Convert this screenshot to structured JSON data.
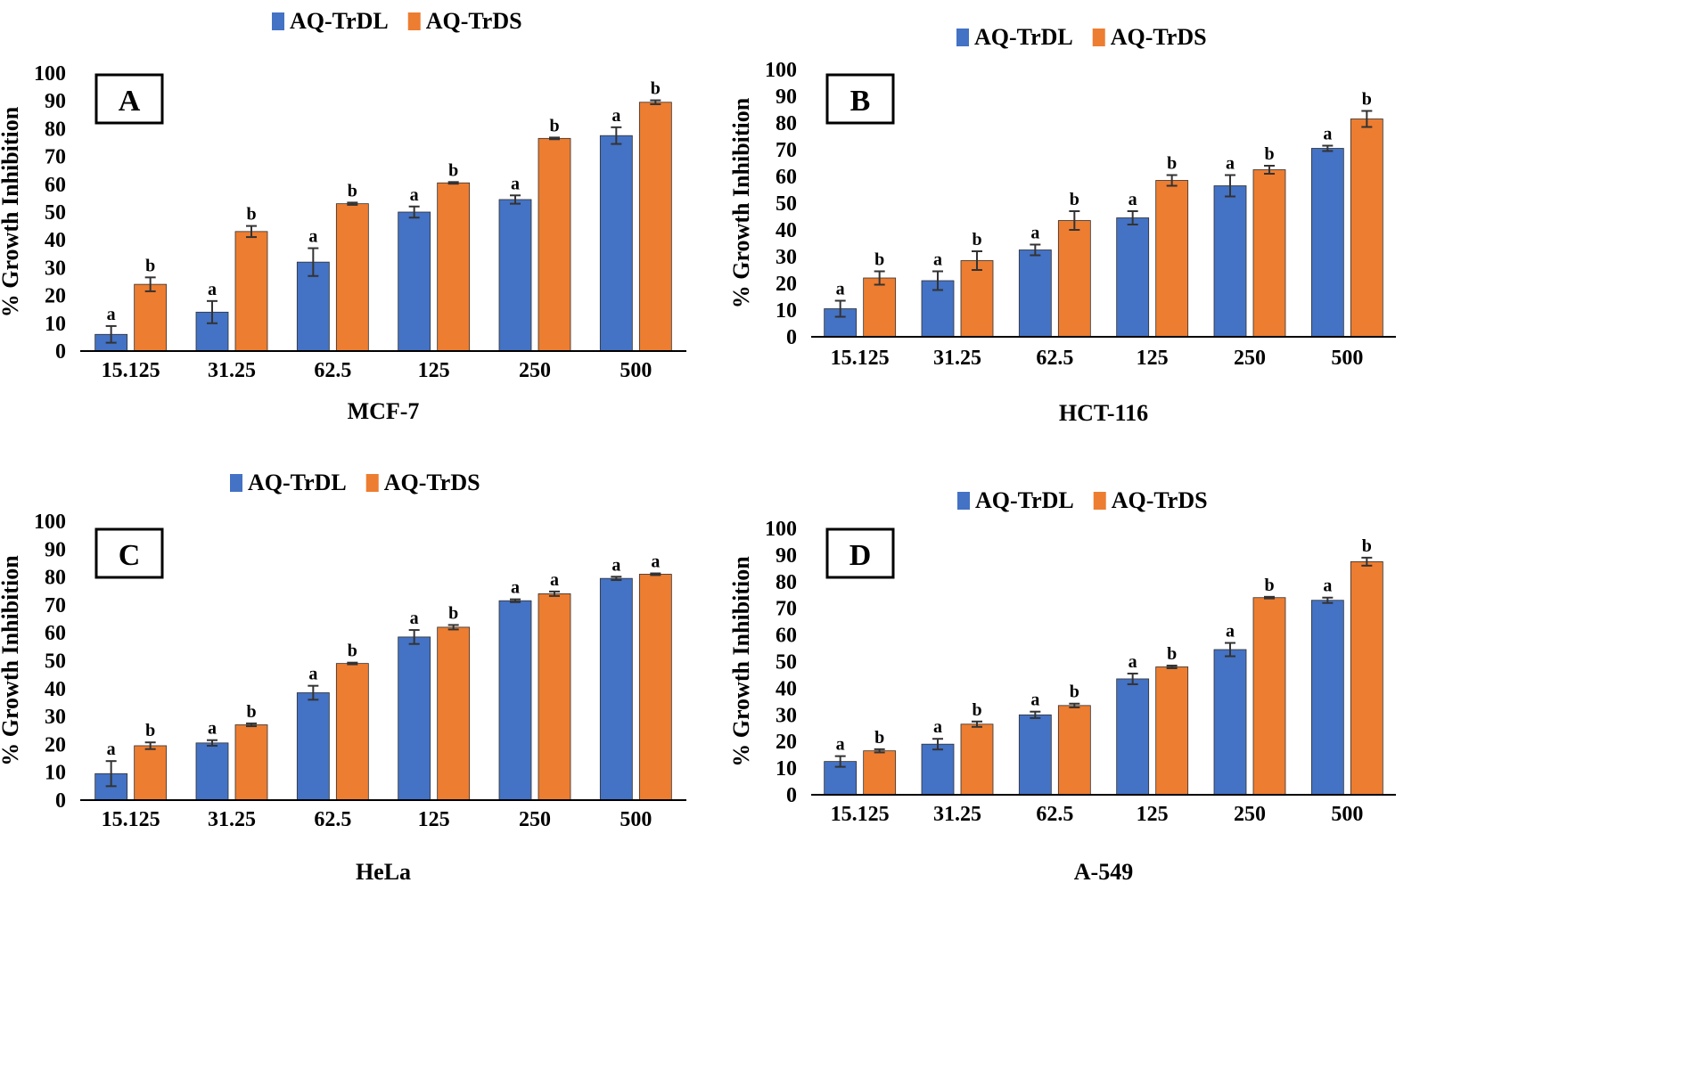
{
  "chart_data": [
    {
      "type": "bar",
      "panel_label": "A",
      "xlabel": "MCF-7",
      "ylabel": "% Growth Inhibition",
      "ylim": [
        0,
        100
      ],
      "yticks": [
        0,
        10,
        20,
        30,
        40,
        50,
        60,
        70,
        80,
        90,
        100
      ],
      "categories": [
        "15.125",
        "31.25",
        "62.5",
        "125",
        "250",
        "500"
      ],
      "legend": "top-center",
      "series": [
        {
          "name": "AQ-TrDL",
          "color": "#4472C4",
          "values": [
            6,
            14,
            32,
            50,
            54.5,
            77.5
          ],
          "errors": [
            3,
            4,
            5,
            2,
            1.5,
            3
          ],
          "letters": [
            "a",
            "a",
            "a",
            "a",
            "a",
            "a"
          ]
        },
        {
          "name": "AQ-TrDS",
          "color": "#ED7D31",
          "values": [
            24,
            43,
            53,
            60.5,
            76.5,
            89.5
          ],
          "errors": [
            2.5,
            2,
            0.4,
            0.3,
            0.3,
            0.7
          ],
          "letters": [
            "b",
            "b",
            "b",
            "b",
            "b",
            "b"
          ]
        }
      ]
    },
    {
      "type": "bar",
      "panel_label": "B",
      "xlabel": "HCT-116",
      "ylabel": "% Growth Inhibition",
      "ylim": [
        0,
        100
      ],
      "yticks": [
        0,
        10,
        20,
        30,
        40,
        50,
        60,
        70,
        80,
        90,
        100
      ],
      "categories": [
        "15.125",
        "31.25",
        "62.5",
        "125",
        "250",
        "500"
      ],
      "legend": "top-center",
      "series": [
        {
          "name": "AQ-TrDL",
          "color": "#4472C4",
          "values": [
            10.5,
            21,
            32.5,
            44.5,
            56.5,
            70.5
          ],
          "errors": [
            3,
            3.5,
            2,
            2.5,
            4,
            1
          ],
          "letters": [
            "a",
            "a",
            "a",
            "a",
            "a",
            "a"
          ]
        },
        {
          "name": "AQ-TrDS",
          "color": "#ED7D31",
          "values": [
            22,
            28.5,
            43.5,
            58.5,
            62.5,
            81.5
          ],
          "errors": [
            2.5,
            3.5,
            3.5,
            2,
            1.5,
            3
          ],
          "letters": [
            "b",
            "b",
            "b",
            "b",
            "b",
            "b"
          ]
        }
      ]
    },
    {
      "type": "bar",
      "panel_label": "C",
      "xlabel": "HeLa",
      "ylabel": "% Growth Inhibition",
      "ylim": [
        0,
        100
      ],
      "yticks": [
        0,
        10,
        20,
        30,
        40,
        50,
        60,
        70,
        80,
        90,
        100
      ],
      "categories": [
        "15.125",
        "31.25",
        "62.5",
        "125",
        "250",
        "500"
      ],
      "legend": "top-center",
      "series": [
        {
          "name": "AQ-TrDL",
          "color": "#4472C4",
          "values": [
            9.5,
            20.5,
            38.5,
            58.5,
            71.5,
            79.5
          ],
          "errors": [
            4.5,
            1,
            2.5,
            2.5,
            0.5,
            0.6
          ],
          "letters": [
            "a",
            "a",
            "a",
            "a",
            "a",
            "a"
          ]
        },
        {
          "name": "AQ-TrDS",
          "color": "#ED7D31",
          "values": [
            19.5,
            27,
            49,
            62,
            74,
            81
          ],
          "errors": [
            1.2,
            0.5,
            0.3,
            0.8,
            0.8,
            0.3
          ],
          "letters": [
            "b",
            "b",
            "b",
            "b",
            "a",
            "a"
          ]
        }
      ]
    },
    {
      "type": "bar",
      "panel_label": "D",
      "xlabel": "A-549",
      "ylabel": "% Growth Inhibition",
      "ylim": [
        0,
        100
      ],
      "yticks": [
        0,
        10,
        20,
        30,
        40,
        50,
        60,
        70,
        80,
        90,
        100
      ],
      "categories": [
        "15.125",
        "31.25",
        "62.5",
        "125",
        "250",
        "500"
      ],
      "legend": "top-center",
      "series": [
        {
          "name": "AQ-TrDL",
          "color": "#4472C4",
          "values": [
            12.5,
            19,
            30,
            43.5,
            54.5,
            73
          ],
          "errors": [
            2,
            2,
            1.2,
            2,
            2.5,
            1
          ],
          "letters": [
            "a",
            "a",
            "a",
            "a",
            "a",
            "a"
          ]
        },
        {
          "name": "AQ-TrDS",
          "color": "#ED7D31",
          "values": [
            16.5,
            26.5,
            33.5,
            48,
            74,
            87.5
          ],
          "errors": [
            0.6,
            1,
            0.7,
            0.5,
            0.3,
            1.5
          ],
          "letters": [
            "b",
            "b",
            "b",
            "b",
            "b",
            "b"
          ]
        }
      ]
    }
  ]
}
